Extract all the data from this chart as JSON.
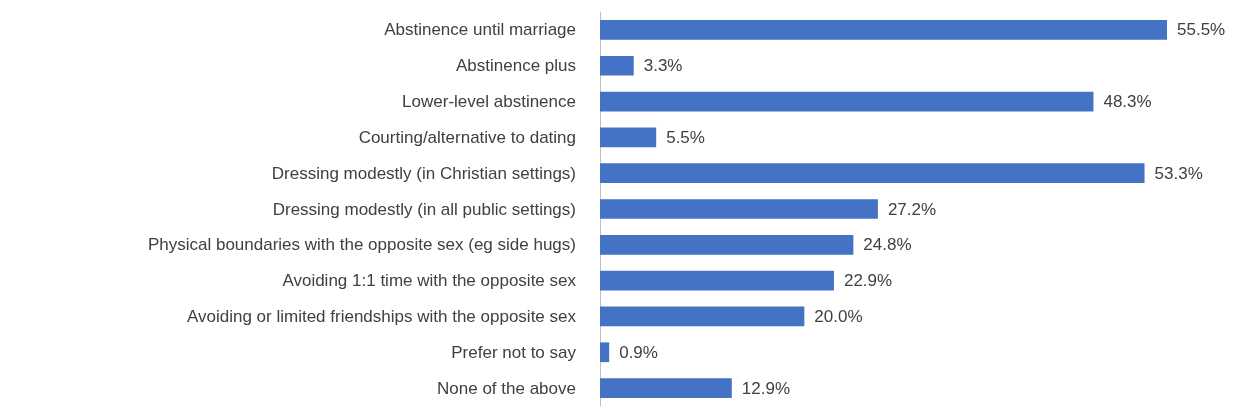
{
  "chart_data": {
    "type": "bar",
    "orientation": "horizontal",
    "categories": [
      "Abstinence until marriage",
      "Abstinence plus",
      "Lower-level abstinence",
      "Courting/alternative to dating",
      "Dressing modestly (in Christian settings)",
      "Dressing modestly (in all public settings)",
      "Physical boundaries with the opposite sex (eg side hugs)",
      "Avoiding 1:1 time with the opposite sex",
      "Avoiding or limited friendships with the opposite sex",
      "Prefer not to say",
      "None of the above"
    ],
    "values": [
      55.5,
      3.3,
      48.3,
      5.5,
      53.3,
      27.2,
      24.8,
      22.9,
      20.0,
      0.9,
      12.9
    ],
    "value_labels": [
      "55.5%",
      "3.3%",
      "48.3%",
      "5.5%",
      "53.3%",
      "27.2%",
      "24.8%",
      "22.9%",
      "20.0%",
      "0.9%",
      "12.9%"
    ],
    "color": "#4472c4"
  }
}
